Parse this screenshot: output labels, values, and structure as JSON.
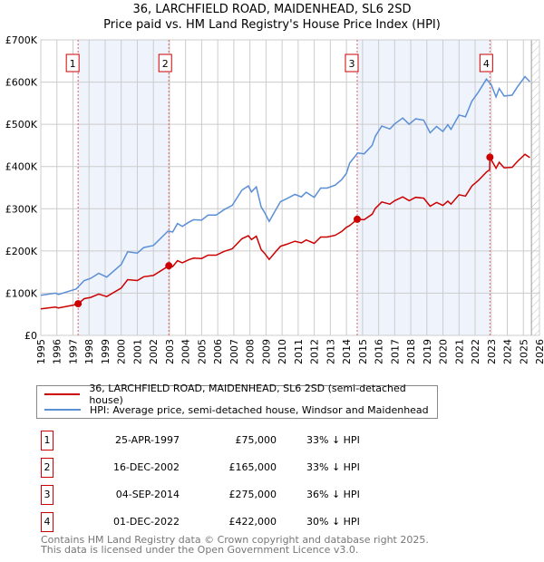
{
  "chart_data": {
    "type": "line",
    "title": "36, LARCHFIELD ROAD, MAIDENHEAD, SL6 2SD",
    "subtitle": "Price paid vs. HM Land Registry's House Price Index (HPI)",
    "xlim": [
      1995,
      2026
    ],
    "ylim": [
      0,
      700000
    ],
    "y_ticks": [
      {
        "v": 0,
        "label": "£0"
      },
      {
        "v": 100000,
        "label": "£100K"
      },
      {
        "v": 200000,
        "label": "£200K"
      },
      {
        "v": 300000,
        "label": "£300K"
      },
      {
        "v": 400000,
        "label": "£400K"
      },
      {
        "v": 500000,
        "label": "£500K"
      },
      {
        "v": 600000,
        "label": "£600K"
      },
      {
        "v": 700000,
        "label": "£700K"
      }
    ],
    "x_ticks": [
      "1995",
      "1996",
      "1997",
      "1998",
      "1999",
      "2000",
      "2001",
      "2002",
      "2003",
      "2004",
      "2005",
      "2006",
      "2007",
      "2008",
      "2009",
      "2010",
      "2011",
      "2012",
      "2013",
      "2014",
      "2015",
      "2016",
      "2017",
      "2018",
      "2019",
      "2020",
      "2021",
      "2022",
      "2023",
      "2024",
      "2025",
      "2026"
    ],
    "grid": true,
    "shaded_ranges": [
      [
        1997.32,
        2002.96
      ],
      [
        2014.67,
        2022.92
      ]
    ],
    "future_hatch_from": 2025.5,
    "colors": {
      "property": "#cc0000",
      "hpi": "#5b8fd6",
      "shade": "#eef3fc"
    },
    "series": [
      {
        "name": "36, LARCHFIELD ROAD, MAIDENHEAD, SL6 2SD (semi-detached house)",
        "color": "#cc0000",
        "unit": "K",
        "points": [
          [
            1995,
            63
          ],
          [
            1995.9,
            67
          ],
          [
            1996.1,
            65
          ],
          [
            1997.2,
            73
          ],
          [
            1997.32,
            75
          ],
          [
            1997.7,
            87
          ],
          [
            1998.1,
            90
          ],
          [
            1998.6,
            98
          ],
          [
            1999.1,
            92
          ],
          [
            2000,
            112
          ],
          [
            2000.4,
            132
          ],
          [
            2001,
            130
          ],
          [
            2001.4,
            139
          ],
          [
            2002,
            142
          ],
          [
            2002.96,
            165
          ],
          [
            2003.2,
            163
          ],
          [
            2003.5,
            177
          ],
          [
            2003.8,
            172
          ],
          [
            2004.2,
            179
          ],
          [
            2004.5,
            183
          ],
          [
            2005,
            182
          ],
          [
            2005.4,
            190
          ],
          [
            2005.9,
            190
          ],
          [
            2006.4,
            199
          ],
          [
            2006.9,
            205
          ],
          [
            2007.5,
            229
          ],
          [
            2007.9,
            236
          ],
          [
            2008.1,
            227
          ],
          [
            2008.4,
            235
          ],
          [
            2008.7,
            203
          ],
          [
            2008.9,
            195
          ],
          [
            2009.2,
            180
          ],
          [
            2009.6,
            198
          ],
          [
            2009.9,
            211
          ],
          [
            2010.3,
            216
          ],
          [
            2010.8,
            223
          ],
          [
            2011.2,
            219
          ],
          [
            2011.5,
            226
          ],
          [
            2012,
            218
          ],
          [
            2012.4,
            233
          ],
          [
            2012.8,
            233
          ],
          [
            2013.3,
            237
          ],
          [
            2013.7,
            246
          ],
          [
            2014,
            256
          ],
          [
            2014.2,
            260
          ],
          [
            2014.67,
            275
          ],
          [
            2015.1,
            274
          ],
          [
            2015.6,
            287
          ],
          [
            2015.8,
            301
          ],
          [
            2016.2,
            316
          ],
          [
            2016.7,
            311
          ],
          [
            2017,
            319
          ],
          [
            2017.5,
            328
          ],
          [
            2017.9,
            319
          ],
          [
            2018.3,
            327
          ],
          [
            2018.8,
            325
          ],
          [
            2019.2,
            306
          ],
          [
            2019.6,
            315
          ],
          [
            2020,
            308
          ],
          [
            2020.3,
            318
          ],
          [
            2020.5,
            311
          ],
          [
            2021,
            333
          ],
          [
            2021.4,
            330
          ],
          [
            2021.8,
            354
          ],
          [
            2022.2,
            367
          ],
          [
            2022.7,
            387
          ],
          [
            2022.9,
            392
          ],
          [
            2022.92,
            422
          ],
          [
            2023,
            416
          ],
          [
            2023.3,
            396
          ],
          [
            2023.5,
            410
          ],
          [
            2023.8,
            397
          ],
          [
            2024.3,
            398
          ],
          [
            2024.6,
            411
          ],
          [
            2025.1,
            429
          ],
          [
            2025.4,
            421
          ]
        ]
      },
      {
        "name": "HPI: Average price, semi-detached house, Windsor and Maidenhead",
        "color": "#5b8fd6",
        "unit": "K",
        "points": [
          [
            1995,
            95
          ],
          [
            1995.9,
            100
          ],
          [
            1996.1,
            97
          ],
          [
            1997.2,
            110
          ],
          [
            1997.7,
            130
          ],
          [
            1998.1,
            135
          ],
          [
            1998.6,
            147
          ],
          [
            1999.1,
            138
          ],
          [
            2000,
            168
          ],
          [
            2000.4,
            198
          ],
          [
            2001,
            195
          ],
          [
            2001.4,
            208
          ],
          [
            2002,
            213
          ],
          [
            2002.9,
            247
          ],
          [
            2003.2,
            245
          ],
          [
            2003.5,
            265
          ],
          [
            2003.8,
            258
          ],
          [
            2004.2,
            268
          ],
          [
            2004.5,
            274
          ],
          [
            2005,
            273
          ],
          [
            2005.4,
            285
          ],
          [
            2005.9,
            285
          ],
          [
            2006.4,
            298
          ],
          [
            2006.9,
            308
          ],
          [
            2007.5,
            344
          ],
          [
            2007.9,
            354
          ],
          [
            2008.1,
            340
          ],
          [
            2008.4,
            352
          ],
          [
            2008.7,
            304
          ],
          [
            2008.9,
            292
          ],
          [
            2009.2,
            270
          ],
          [
            2009.6,
            297
          ],
          [
            2009.9,
            317
          ],
          [
            2010.3,
            324
          ],
          [
            2010.8,
            334
          ],
          [
            2011.2,
            328
          ],
          [
            2011.5,
            339
          ],
          [
            2012,
            327
          ],
          [
            2012.4,
            349
          ],
          [
            2012.8,
            349
          ],
          [
            2013.3,
            356
          ],
          [
            2013.7,
            369
          ],
          [
            2014,
            384
          ],
          [
            2014.2,
            408
          ],
          [
            2014.7,
            432
          ],
          [
            2015.1,
            430
          ],
          [
            2015.6,
            450
          ],
          [
            2015.8,
            472
          ],
          [
            2016.2,
            496
          ],
          [
            2016.7,
            489
          ],
          [
            2017,
            501
          ],
          [
            2017.5,
            515
          ],
          [
            2017.9,
            500
          ],
          [
            2018.3,
            513
          ],
          [
            2018.8,
            510
          ],
          [
            2019.2,
            480
          ],
          [
            2019.6,
            495
          ],
          [
            2020,
            483
          ],
          [
            2020.3,
            499
          ],
          [
            2020.5,
            488
          ],
          [
            2021,
            522
          ],
          [
            2021.4,
            518
          ],
          [
            2021.8,
            555
          ],
          [
            2022.2,
            576
          ],
          [
            2022.7,
            607
          ],
          [
            2023,
            594
          ],
          [
            2023.3,
            565
          ],
          [
            2023.5,
            585
          ],
          [
            2023.8,
            567
          ],
          [
            2024.3,
            569
          ],
          [
            2024.6,
            587
          ],
          [
            2025.1,
            613
          ],
          [
            2025.4,
            601
          ]
        ]
      }
    ],
    "sales": [
      {
        "id": "1",
        "x": 1997.32,
        "price": 75000,
        "date": "25-APR-1997",
        "price_label": "£75,000",
        "diff": "33% ↓ HPI"
      },
      {
        "id": "2",
        "x": 2002.96,
        "price": 165000,
        "date": "16-DEC-2002",
        "price_label": "£165,000",
        "diff": "33% ↓ HPI"
      },
      {
        "id": "3",
        "x": 2014.67,
        "price": 275000,
        "date": "04-SEP-2014",
        "price_label": "£275,000",
        "diff": "36% ↓ HPI"
      },
      {
        "id": "4",
        "x": 2022.92,
        "price": 422000,
        "date": "01-DEC-2022",
        "price_label": "£422,000",
        "diff": "30% ↓ HPI"
      }
    ]
  },
  "legend": {
    "property": "36, LARCHFIELD ROAD, MAIDENHEAD, SL6 2SD (semi-detached house)",
    "hpi": "HPI: Average price, semi-detached house, Windsor and Maidenhead"
  },
  "footer": {
    "line1": "Contains HM Land Registry data © Crown copyright and database right 2025.",
    "line2": "This data is licensed under the Open Government Licence v3.0."
  }
}
